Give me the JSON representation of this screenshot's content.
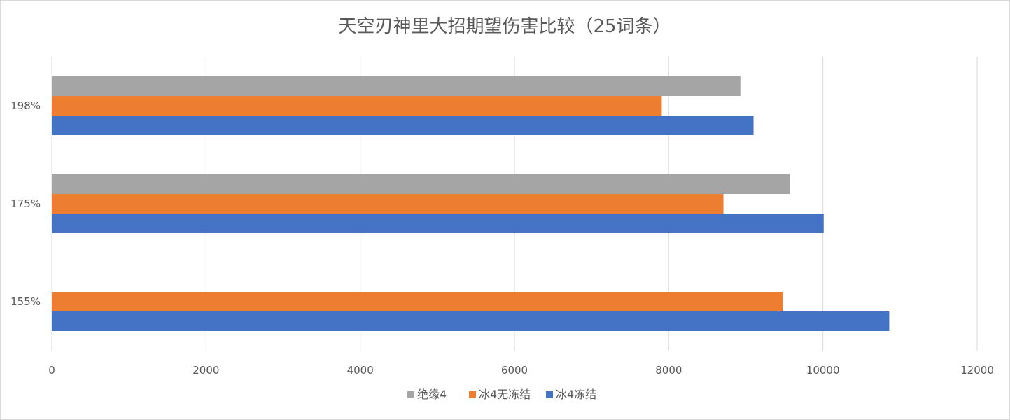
{
  "chart_data": {
    "type": "bar",
    "orientation": "horizontal",
    "title": "天空刃神里大招期望伤害比较（25词条）",
    "categories": [
      "155%",
      "175%",
      "198%"
    ],
    "series": [
      {
        "name": "冰4冻结",
        "color": "#4472c4",
        "values": [
          10860,
          10010,
          9100
        ]
      },
      {
        "name": "冰4无冻结",
        "color": "#ed7d31",
        "values": [
          9480,
          8710,
          7910
        ]
      },
      {
        "name": "绝缘4",
        "color": "#a5a5a5",
        "values": [
          null,
          9570,
          8930
        ]
      }
    ],
    "xlim": [
      0,
      12000
    ],
    "xticks": [
      "0",
      "2000",
      "4000",
      "6000",
      "8000",
      "10000",
      "12000"
    ],
    "grid": true,
    "legend_position": "bottom",
    "legend_order": [
      "绝缘4",
      "冰4无冻结",
      "冰4冻结"
    ]
  }
}
